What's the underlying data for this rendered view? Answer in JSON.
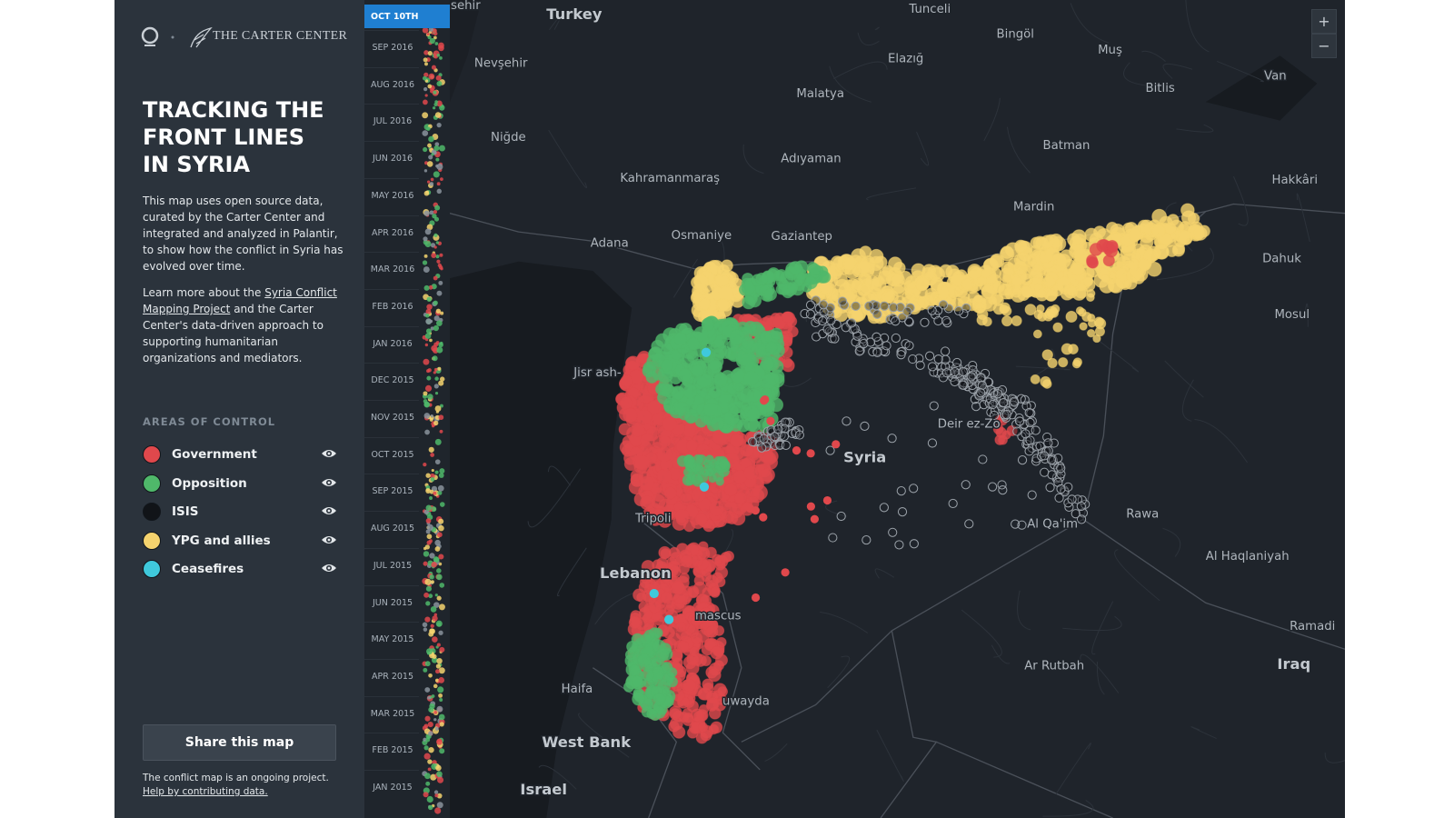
{
  "header": {
    "brand": "THE CARTER CENTER"
  },
  "sidebar": {
    "title": [
      "TRACKING THE",
      "FRONT LINES",
      "IN SYRIA"
    ],
    "intro": "This map uses open source data, curated by the Carter Center and integrated and analyzed in Palantir, to show how the conflict in Syria has evolved over time.",
    "learn_more": {
      "before": "Learn more about the ",
      "link": "Syria Conflict Mapping Project",
      "after": " and the Carter Center's data-driven approach to supporting humanitarian organizations and mediators."
    },
    "legend": {
      "heading": "AREAS OF CONTROL",
      "items": [
        {
          "name": "Government",
          "color": "#e0484c"
        },
        {
          "name": "Opposition",
          "color": "#4fb86a"
        },
        {
          "name": "ISIS",
          "color": "#111418"
        },
        {
          "name": "YPG and allies",
          "color": "#f5d36e"
        },
        {
          "name": "Ceasefires",
          "color": "#3fc9dc"
        }
      ]
    },
    "share_button": "Share this map",
    "footer": {
      "text": "The conflict map is an ongoing project.",
      "link": "Help by contributing data."
    }
  },
  "timeline": {
    "selected": "OCT 10TH",
    "months": [
      "SEP 2016",
      "AUG 2016",
      "JUL 2016",
      "JUN 2016",
      "MAY 2016",
      "APR 2016",
      "MAR 2016",
      "FEB 2016",
      "JAN 2016",
      "DEC 2015",
      "NOV 2015",
      "OCT 2015",
      "SEP 2015",
      "AUG 2015",
      "JUL 2015",
      "JUN 2015",
      "MAY 2015",
      "APR 2015",
      "MAR 2015",
      "FEB 2015",
      "JAN 2015"
    ]
  },
  "map": {
    "zoom_in": "+",
    "zoom_out": "−",
    "labels": [
      "Turkey",
      "sehir",
      "Tunceli",
      "Bingöl",
      "Nevşehir",
      "Elazığ",
      "Muş",
      "Malatya",
      "Van",
      "Bitlis",
      "Niğde",
      "Batman",
      "Adıyaman",
      "Kahramanmaraş",
      "Hakkâri",
      "Mardin",
      "Adana",
      "Osmaniye",
      "Gaziantep",
      "Dahuk",
      "Mosul",
      "Jisr ash-",
      "Syria",
      "Deir ez-Zo",
      "Tripoli",
      "Rawa",
      "Al Qa'im",
      "Lebanon",
      "Al Haqlaniyah",
      "Ramadi",
      "Iraq",
      "Ar Rutbah",
      "Haifa",
      "mascus",
      "uwayda",
      "West Bank",
      "Israel"
    ]
  }
}
